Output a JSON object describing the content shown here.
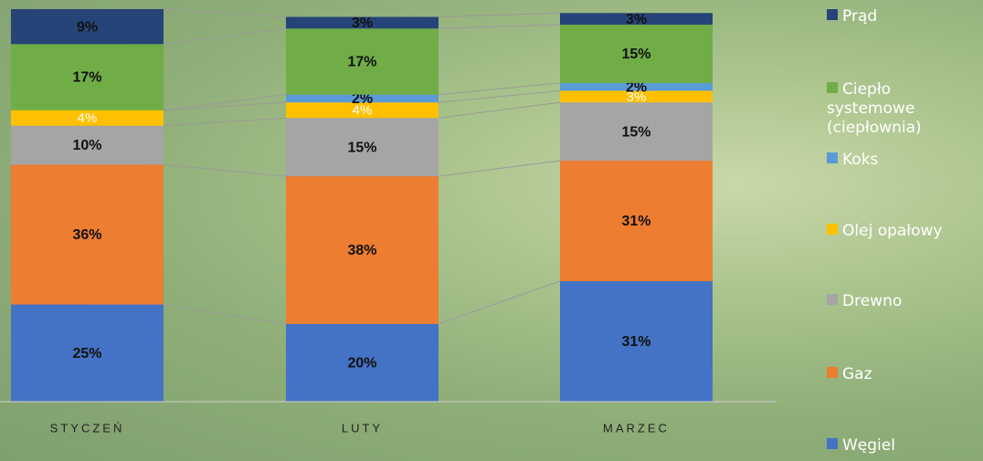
{
  "chart_data": {
    "type": "stacked-bar",
    "categories": [
      "STYCZEŃ",
      "LUTY",
      "MARZEC"
    ],
    "series": [
      {
        "name": "Węgiel",
        "color": "#4472c4",
        "values": [
          25,
          20,
          31
        ],
        "value_labels": [
          "25%",
          "20%",
          "31%"
        ]
      },
      {
        "name": "Gaz",
        "color": "#ed7d31",
        "values": [
          36,
          38,
          31
        ],
        "value_labels": [
          "36%",
          "38%",
          "31%"
        ]
      },
      {
        "name": "Drewno",
        "color": "#a5a5a5",
        "values": [
          10,
          15,
          15
        ],
        "value_labels": [
          "10%",
          "15%",
          "15%"
        ]
      },
      {
        "name": "Olej opałowy",
        "color": "#ffc000",
        "values": [
          4,
          4,
          3
        ],
        "value_labels": [
          "4%",
          "4%",
          "3%"
        ]
      },
      {
        "name": "Koks",
        "color": "#5b9bd5",
        "values": [
          null,
          2,
          2
        ],
        "value_labels": [
          null,
          "2%",
          "2%"
        ]
      },
      {
        "name": "Ciepło systemowe (ciepłownia)",
        "color": "#70ad47",
        "values": [
          17,
          17,
          15
        ],
        "value_labels": [
          "17%",
          "17%",
          "15%"
        ]
      },
      {
        "name": "Prąd",
        "color": "#264478",
        "values": [
          9,
          3,
          3
        ],
        "value_labels": [
          "9%",
          "3%",
          "3%"
        ]
      }
    ],
    "ylim": [
      0,
      101
    ]
  }
}
